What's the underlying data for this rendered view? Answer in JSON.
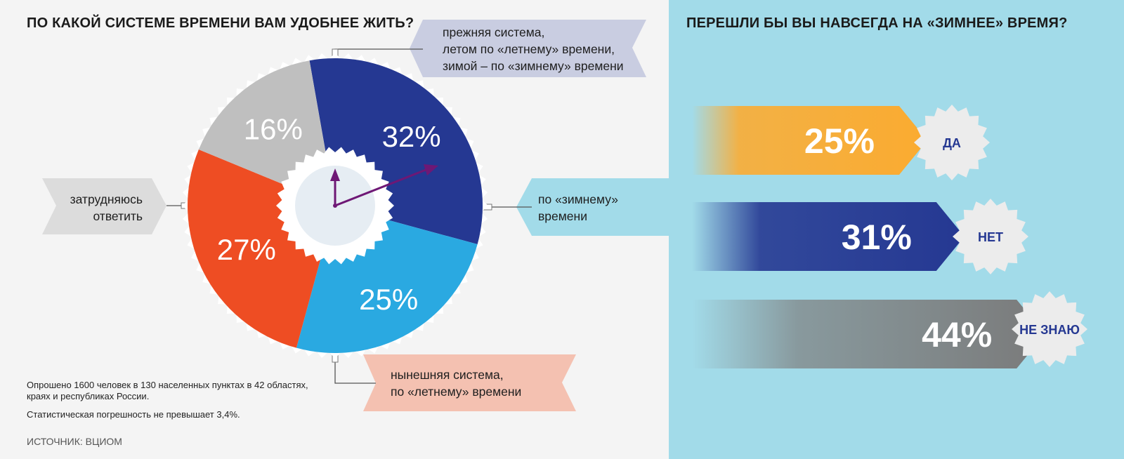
{
  "left_title": "ПО КАКОЙ СИСТЕМЕ ВРЕМЕНИ ВАМ УДОБНЕЕ ЖИТЬ?",
  "right_title": "ПЕРЕШЛИ БЫ ВЫ НАВСЕГДА НА «ЗИМНЕЕ» ВРЕМЯ?",
  "callouts": {
    "old_system": [
      "прежняя система,",
      "летом по «летнему» времени,",
      "зимой – по «зимнему» времени"
    ],
    "winter": [
      "по «зимнему»",
      "времени"
    ],
    "hard": [
      "затрудняюсь",
      "ответить"
    ],
    "current": [
      "нынешняя система,",
      "по «летнему» времени"
    ]
  },
  "notes": {
    "survey_line1": "Опрошено 1600 человек в 130 населенных пунктах в 42 областях,",
    "survey_line2": "краях и республиках России.",
    "error": "Статистическая погрешность не превышает 3,4%.",
    "source": "ИСТОЧНИК: ВЦИОМ"
  },
  "colors": {
    "old_system": "#253892",
    "winter": "#2aa9e1",
    "current": "#ee4d23",
    "hard": "#bfbfbf",
    "clock_hands": "#6e1875",
    "right_bg": "#a2dbe9",
    "left_bg": "#f4f4f4",
    "badge_text": "#253892"
  },
  "chart_data": [
    {
      "type": "pie",
      "title": "ПО КАКОЙ СИСТЕМЕ ВРЕМЕНИ ВАМ УДОБНЕЕ ЖИТЬ?",
      "categories": [
        "прежняя система, летом по «летнему» времени, зимой – по «зимнему» времени",
        "по «зимнему» времени",
        "нынешняя система, по «летнему» времени",
        "затрудняюсь ответить"
      ],
      "values": [
        32,
        25,
        27,
        16
      ],
      "labels": [
        "32%",
        "25%",
        "27%",
        "16%"
      ],
      "unit": "%"
    },
    {
      "type": "bar",
      "title": "ПЕРЕШЛИ БЫ ВЫ НАВСЕГДА НА «ЗИМНЕЕ» ВРЕМЯ?",
      "categories": [
        "ДА",
        "НЕТ",
        "НЕ ЗНАЮ"
      ],
      "values": [
        25,
        31,
        44
      ],
      "labels": [
        "25%",
        "31%",
        "44%"
      ],
      "unit": "%"
    }
  ]
}
